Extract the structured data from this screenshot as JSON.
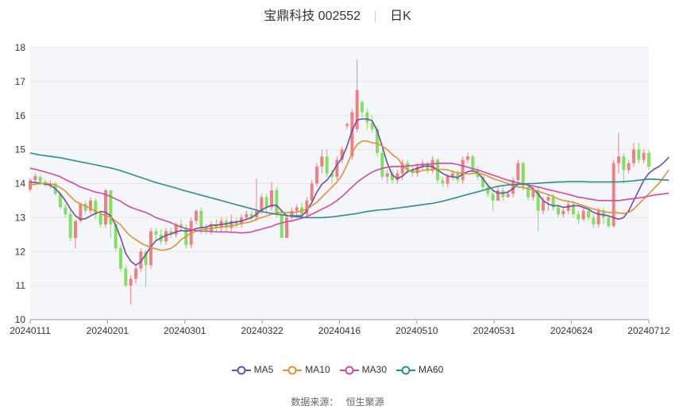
{
  "title": {
    "stock_name": "宝鼎科技 002552",
    "period": "日K"
  },
  "source": {
    "label": "数据来源：",
    "value": "恒生聚源"
  },
  "colors": {
    "up": "#f08080",
    "down": "#80e060",
    "MA5": "#6a4fa8",
    "MA10": "#e0913a",
    "MA30": "#d24a9e",
    "MA60": "#2f8c8c",
    "grid": "#e6e6e6",
    "plot_bg": "#f5f6fa"
  },
  "chart_data": {
    "type": "candlestick",
    "ylim": [
      10,
      18
    ],
    "yticks": [
      10,
      11,
      12,
      13,
      14,
      15,
      16,
      17,
      18
    ],
    "x_tick_labels": [
      "20240111",
      "20240201",
      "20240301",
      "20240322",
      "20240416",
      "20240510",
      "20240531",
      "20240624",
      "20240712"
    ],
    "grid": true,
    "legend_position": "bottom",
    "candles": [
      [
        13.82,
        14.1,
        14.15,
        13.75
      ],
      [
        14.1,
        14.22,
        14.3,
        14.05
      ],
      [
        14.2,
        14.05,
        14.25,
        13.95
      ],
      [
        14.05,
        13.95,
        14.12,
        13.9
      ],
      [
        13.95,
        14.0,
        14.1,
        13.85
      ],
      [
        14.0,
        13.7,
        14.05,
        13.65
      ],
      [
        13.7,
        13.3,
        13.75,
        13.25
      ],
      [
        13.3,
        13.1,
        13.4,
        13.0
      ],
      [
        13.1,
        12.4,
        13.2,
        12.3
      ],
      [
        12.4,
        12.9,
        12.95,
        12.1
      ],
      [
        12.9,
        13.4,
        13.45,
        12.85
      ],
      [
        13.4,
        13.2,
        13.5,
        13.1
      ],
      [
        13.2,
        13.5,
        13.6,
        13.1
      ],
      [
        13.5,
        13.1,
        13.55,
        12.95
      ],
      [
        13.1,
        12.8,
        13.2,
        12.7
      ],
      [
        12.8,
        13.8,
        13.85,
        12.7
      ],
      [
        13.8,
        12.8,
        13.82,
        12.4
      ],
      [
        12.8,
        12.1,
        12.85,
        12.0
      ],
      [
        12.1,
        11.5,
        12.2,
        11.4
      ],
      [
        11.5,
        11.0,
        11.6,
        10.95
      ],
      [
        11.0,
        11.2,
        11.3,
        10.45
      ],
      [
        11.2,
        11.5,
        11.6,
        11.05
      ],
      [
        11.5,
        12.0,
        12.1,
        11.4
      ],
      [
        12.0,
        11.6,
        12.05,
        10.95
      ],
      [
        11.6,
        12.6,
        12.7,
        11.5
      ],
      [
        12.6,
        12.5,
        12.7,
        12.3
      ],
      [
        12.5,
        12.3,
        12.65,
        12.2
      ],
      [
        12.3,
        12.6,
        12.7,
        12.2
      ],
      [
        12.6,
        12.5,
        12.7,
        12.4
      ],
      [
        12.5,
        12.8,
        12.85,
        12.4
      ],
      [
        12.8,
        12.7,
        12.95,
        12.6
      ],
      [
        12.7,
        12.2,
        12.8,
        12.1
      ],
      [
        12.2,
        12.9,
        13.0,
        12.1
      ],
      [
        12.9,
        13.2,
        13.25,
        12.8
      ],
      [
        13.2,
        12.7,
        13.3,
        12.5
      ],
      [
        12.7,
        12.6,
        12.8,
        12.5
      ],
      [
        12.6,
        12.8,
        12.9,
        12.5
      ],
      [
        12.8,
        12.7,
        12.95,
        12.6
      ],
      [
        12.7,
        12.9,
        13.0,
        12.6
      ],
      [
        12.9,
        12.7,
        13.0,
        12.6
      ],
      [
        12.7,
        12.9,
        13.1,
        12.6
      ],
      [
        12.9,
        12.8,
        13.0,
        12.7
      ],
      [
        12.8,
        13.0,
        13.1,
        12.7
      ],
      [
        13.0,
        13.1,
        13.2,
        12.9
      ],
      [
        13.1,
        13.0,
        13.2,
        12.9
      ],
      [
        13.0,
        13.2,
        14.15,
        12.9
      ],
      [
        13.2,
        13.6,
        13.7,
        13.1
      ],
      [
        13.6,
        13.3,
        13.7,
        13.1
      ],
      [
        13.3,
        13.8,
        14.05,
        13.2
      ],
      [
        13.8,
        13.1,
        13.9,
        13.0
      ],
      [
        13.1,
        12.4,
        13.2,
        12.4
      ],
      [
        12.4,
        13.0,
        13.1,
        12.4
      ],
      [
        13.0,
        13.2,
        13.3,
        12.9
      ],
      [
        13.2,
        13.3,
        13.4,
        13.0
      ],
      [
        13.3,
        13.1,
        13.45,
        13.0
      ],
      [
        13.1,
        13.5,
        13.6,
        13.0
      ],
      [
        13.5,
        14.0,
        14.1,
        13.4
      ],
      [
        14.0,
        14.5,
        14.6,
        13.9
      ],
      [
        14.5,
        14.8,
        15.0,
        14.3
      ],
      [
        14.8,
        14.3,
        15.0,
        14.2
      ],
      [
        14.3,
        14.2,
        14.4,
        14.0
      ],
      [
        14.2,
        14.7,
        14.8,
        14.1
      ],
      [
        14.7,
        15.0,
        15.1,
        14.6
      ],
      [
        15.7,
        15.75,
        15.8,
        15.6
      ],
      [
        14.8,
        16.1,
        16.2,
        14.7
      ],
      [
        15.6,
        16.75,
        17.65,
        15.5
      ],
      [
        16.4,
        16.1,
        16.45,
        15.95
      ],
      [
        16.1,
        15.8,
        16.2,
        15.6
      ],
      [
        15.8,
        15.6,
        16.0,
        15.5
      ],
      [
        15.6,
        14.9,
        15.7,
        14.8
      ],
      [
        14.9,
        14.2,
        15.0,
        14.1
      ],
      [
        14.2,
        14.3,
        14.4,
        14.0
      ],
      [
        14.3,
        14.1,
        14.4,
        14.0
      ],
      [
        14.1,
        14.3,
        14.4,
        14.0
      ],
      [
        14.3,
        14.6,
        14.7,
        14.1
      ],
      [
        14.6,
        14.4,
        14.7,
        14.3
      ],
      [
        14.4,
        14.3,
        14.5,
        14.2
      ],
      [
        14.3,
        14.5,
        14.6,
        14.2
      ],
      [
        14.5,
        14.6,
        14.7,
        14.4
      ],
      [
        14.6,
        14.4,
        14.65,
        14.3
      ],
      [
        14.4,
        14.7,
        14.8,
        14.3
      ],
      [
        14.7,
        14.1,
        14.75,
        14.0
      ],
      [
        14.1,
        14.0,
        14.2,
        13.9
      ],
      [
        14.0,
        14.2,
        14.3,
        13.9
      ],
      [
        14.2,
        14.3,
        14.4,
        14.1
      ],
      [
        14.3,
        14.1,
        14.4,
        14.0
      ],
      [
        14.1,
        14.7,
        14.8,
        14.0
      ],
      [
        14.7,
        14.8,
        14.9,
        14.6
      ],
      [
        14.8,
        14.4,
        14.85,
        14.3
      ],
      [
        14.4,
        14.2,
        14.5,
        14.1
      ],
      [
        14.2,
        13.9,
        14.3,
        13.8
      ],
      [
        13.9,
        13.7,
        14.0,
        13.6
      ],
      [
        13.7,
        13.5,
        13.8,
        13.2
      ],
      [
        13.5,
        13.8,
        13.9,
        13.5
      ],
      [
        13.8,
        13.6,
        13.9,
        13.5
      ],
      [
        13.6,
        13.7,
        13.8,
        13.6
      ],
      [
        13.7,
        14.1,
        14.2,
        13.6
      ],
      [
        14.1,
        14.6,
        14.7,
        14.0
      ],
      [
        14.6,
        13.9,
        14.65,
        13.8
      ],
      [
        13.9,
        13.6,
        14.0,
        13.5
      ],
      [
        13.6,
        13.8,
        13.9,
        13.5
      ],
      [
        13.8,
        13.2,
        13.9,
        12.6
      ],
      [
        13.2,
        13.5,
        13.6,
        13.1
      ],
      [
        13.5,
        13.6,
        13.7,
        13.2
      ],
      [
        13.6,
        13.3,
        13.7,
        13.2
      ],
      [
        13.3,
        13.1,
        13.4,
        13.0
      ],
      [
        13.1,
        13.2,
        13.3,
        13.0
      ],
      [
        13.2,
        13.4,
        13.5,
        13.1
      ],
      [
        13.4,
        13.1,
        13.5,
        13.0
      ],
      [
        13.1,
        12.95,
        13.2,
        12.8
      ],
      [
        12.95,
        13.2,
        13.3,
        12.9
      ],
      [
        13.2,
        13.0,
        13.3,
        12.9
      ],
      [
        13.0,
        12.8,
        13.1,
        12.7
      ],
      [
        12.8,
        13.2,
        13.3,
        12.7
      ],
      [
        13.2,
        13.0,
        13.3,
        12.8
      ],
      [
        13.0,
        12.75,
        13.05,
        12.7
      ],
      [
        12.75,
        14.6,
        14.7,
        12.7
      ],
      [
        14.6,
        14.8,
        15.5,
        14.3
      ],
      [
        14.8,
        14.4,
        14.9,
        14.0
      ],
      [
        14.4,
        14.6,
        14.7,
        14.3
      ],
      [
        14.6,
        15.0,
        15.2,
        14.5
      ],
      [
        15.0,
        14.7,
        15.2,
        14.6
      ],
      [
        14.7,
        14.9,
        15.0,
        14.6
      ],
      [
        14.9,
        14.5,
        15.0,
        14.4
      ]
    ],
    "series": [
      {
        "name": "MA5",
        "values": [
          14.05,
          14.03,
          14.01,
          13.99,
          13.95,
          13.85,
          13.7,
          13.5,
          13.25,
          13.05,
          12.95,
          12.97,
          13.05,
          13.12,
          13.18,
          13.16,
          13.05,
          12.78,
          12.4,
          11.95,
          11.72,
          11.6,
          11.7,
          11.92,
          12.14,
          12.32,
          12.4,
          12.48,
          12.52,
          12.58,
          12.62,
          12.6,
          12.62,
          12.68,
          12.7,
          12.72,
          12.78,
          12.78,
          12.8,
          12.82,
          12.85,
          12.87,
          12.9,
          12.95,
          13.0,
          13.1,
          13.22,
          13.3,
          13.36,
          13.36,
          13.2,
          13.05,
          13.05,
          13.05,
          13.05,
          13.2,
          13.45,
          13.75,
          13.98,
          14.1,
          14.3,
          14.55,
          14.75,
          15.1,
          15.55,
          15.87,
          15.9,
          15.9,
          15.85,
          15.55,
          15.1,
          14.6,
          14.25,
          14.15,
          14.22,
          14.35,
          14.4,
          14.45,
          14.5,
          14.52,
          14.5,
          14.4,
          14.3,
          14.22,
          14.2,
          14.18,
          14.28,
          14.35,
          14.38,
          14.32,
          14.15,
          13.95,
          13.8,
          13.72,
          13.72,
          13.75,
          13.85,
          13.98,
          14.0,
          13.95,
          13.85,
          13.7,
          13.5,
          13.4,
          13.35,
          13.35,
          13.3,
          13.32,
          13.35,
          13.35,
          13.3,
          13.25,
          13.15,
          13.1,
          13.08,
          13.05,
          13.0,
          12.95,
          13.0,
          13.2,
          13.5,
          13.8,
          14.1,
          14.3,
          14.42,
          14.5,
          14.62,
          14.78
        ]
      },
      {
        "name": "MA10",
        "values": [
          13.95,
          13.98,
          14.0,
          14.01,
          13.99,
          13.97,
          13.88,
          13.78,
          13.62,
          13.48,
          13.4,
          13.34,
          13.27,
          13.19,
          13.12,
          13.05,
          13.02,
          12.9,
          12.78,
          12.6,
          12.45,
          12.35,
          12.25,
          12.18,
          12.12,
          12.08,
          12.04,
          12.05,
          12.1,
          12.2,
          12.35,
          12.45,
          12.55,
          12.6,
          12.64,
          12.67,
          12.68,
          12.7,
          12.72,
          12.74,
          12.75,
          12.78,
          12.83,
          12.85,
          12.88,
          12.95,
          13.0,
          13.05,
          13.1,
          13.14,
          13.15,
          13.15,
          13.15,
          13.16,
          13.2,
          13.25,
          13.35,
          13.45,
          13.6,
          13.75,
          13.9,
          14.05,
          14.25,
          14.55,
          14.9,
          15.15,
          15.25,
          15.25,
          15.2,
          15.18,
          15.1,
          15.0,
          14.85,
          14.75,
          14.55,
          14.4,
          14.35,
          14.35,
          14.38,
          14.4,
          14.4,
          14.42,
          14.42,
          14.4,
          14.35,
          14.32,
          14.3,
          14.28,
          14.3,
          14.3,
          14.28,
          14.22,
          14.15,
          14.1,
          14.05,
          14.0,
          13.95,
          13.9,
          13.88,
          13.85,
          13.82,
          13.78,
          13.72,
          13.68,
          13.62,
          13.55,
          13.5,
          13.48,
          13.45,
          13.4,
          13.35,
          13.3,
          13.25,
          13.22,
          13.18,
          13.15,
          13.15,
          13.14,
          13.12,
          13.15,
          13.25,
          13.4,
          13.55,
          13.7,
          13.85,
          14.0,
          14.2,
          14.4
        ]
      },
      {
        "name": "MA30",
        "values": [
          14.45,
          14.42,
          14.38,
          14.34,
          14.3,
          14.25,
          14.2,
          14.12,
          14.05,
          13.98,
          13.9,
          13.85,
          13.8,
          13.75,
          13.72,
          13.68,
          13.62,
          13.55,
          13.48,
          13.38,
          13.3,
          13.25,
          13.2,
          13.15,
          13.08,
          13.0,
          12.95,
          12.9,
          12.85,
          12.78,
          12.72,
          12.68,
          12.64,
          12.62,
          12.6,
          12.6,
          12.59,
          12.58,
          12.58,
          12.58,
          12.57,
          12.56,
          12.55,
          12.56,
          12.58,
          12.62,
          12.66,
          12.7,
          12.74,
          12.8,
          12.84,
          12.88,
          12.9,
          12.94,
          12.98,
          13.03,
          13.1,
          13.17,
          13.25,
          13.32,
          13.4,
          13.5,
          13.62,
          13.76,
          13.9,
          14.04,
          14.15,
          14.25,
          14.34,
          14.4,
          14.45,
          14.48,
          14.5,
          14.5,
          14.5,
          14.52,
          14.53,
          14.55,
          14.56,
          14.57,
          14.58,
          14.59,
          14.6,
          14.6,
          14.59,
          14.56,
          14.52,
          14.48,
          14.44,
          14.4,
          14.35,
          14.3,
          14.25,
          14.2,
          14.15,
          14.1,
          14.06,
          14.02,
          13.99,
          13.96,
          13.93,
          13.9,
          13.86,
          13.82,
          13.79,
          13.75,
          13.72,
          13.68,
          13.64,
          13.6,
          13.58,
          13.55,
          13.53,
          13.5,
          13.5,
          13.5,
          13.5,
          13.5,
          13.52,
          13.54,
          13.56,
          13.58,
          13.6,
          13.63,
          13.66,
          13.68,
          13.7,
          13.72
        ]
      },
      {
        "name": "MA60",
        "values": [
          14.9,
          14.87,
          14.84,
          14.82,
          14.8,
          14.78,
          14.76,
          14.73,
          14.7,
          14.67,
          14.64,
          14.61,
          14.58,
          14.55,
          14.52,
          14.49,
          14.46,
          14.42,
          14.38,
          14.33,
          14.28,
          14.23,
          14.18,
          14.13,
          14.08,
          14.03,
          13.99,
          13.95,
          13.91,
          13.87,
          13.82,
          13.78,
          13.74,
          13.7,
          13.66,
          13.62,
          13.58,
          13.54,
          13.5,
          13.46,
          13.42,
          13.38,
          13.34,
          13.3,
          13.26,
          13.22,
          13.18,
          13.15,
          13.12,
          13.1,
          13.08,
          13.06,
          13.04,
          13.02,
          13.01,
          13.0,
          13.0,
          13.0,
          13.0,
          13.01,
          13.02,
          13.04,
          13.06,
          13.08,
          13.1,
          13.12,
          13.15,
          13.18,
          13.2,
          13.22,
          13.23,
          13.24,
          13.26,
          13.28,
          13.3,
          13.32,
          13.34,
          13.36,
          13.38,
          13.4,
          13.42,
          13.45,
          13.48,
          13.52,
          13.56,
          13.6,
          13.64,
          13.68,
          13.72,
          13.76,
          13.8,
          13.84,
          13.88,
          13.92,
          13.94,
          13.96,
          13.97,
          13.98,
          13.99,
          14.0,
          14.0,
          14.01,
          14.02,
          14.03,
          14.04,
          14.05,
          14.05,
          14.06,
          14.06,
          14.06,
          14.06,
          14.05,
          14.05,
          14.05,
          14.05,
          14.05,
          14.05,
          14.05,
          14.06,
          14.07,
          14.08,
          14.1,
          14.12,
          14.13,
          14.13,
          14.12,
          14.11,
          14.1
        ]
      }
    ]
  }
}
